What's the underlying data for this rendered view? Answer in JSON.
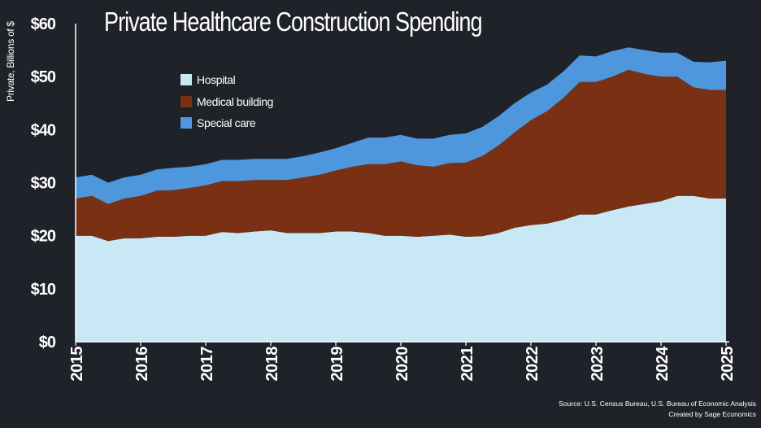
{
  "colors": {
    "background": "#1f2229",
    "hospital": "#c8e8f6",
    "medical_building": "#7a3113",
    "special_care": "#4f97dc",
    "text": "#ffffff"
  },
  "chart_data": {
    "type": "area",
    "stacked": true,
    "title": "Private Healthcare Construction Spending",
    "ylabel": "Private, Billions of $",
    "xlabel": "",
    "ylim": [
      0,
      60
    ],
    "yticks": [
      "$0",
      "$10",
      "$20",
      "$30",
      "$40",
      "$50",
      "$60"
    ],
    "ytick_values": [
      0,
      10,
      20,
      30,
      40,
      50,
      60
    ],
    "xlim": [
      2015,
      2025
    ],
    "xticks": [
      "2015",
      "2016",
      "2017",
      "2018",
      "2019",
      "2020",
      "2021",
      "2022",
      "2023",
      "2024",
      "2025"
    ],
    "xtick_values": [
      2015,
      2016,
      2017,
      2018,
      2019,
      2020,
      2021,
      2022,
      2023,
      2024,
      2025
    ],
    "legend_position": "top-left",
    "x": [
      2015.0,
      2015.25,
      2015.5,
      2015.75,
      2016.0,
      2016.25,
      2016.5,
      2016.75,
      2017.0,
      2017.25,
      2017.5,
      2017.75,
      2018.0,
      2018.25,
      2018.5,
      2018.75,
      2019.0,
      2019.25,
      2019.5,
      2019.75,
      2020.0,
      2020.25,
      2020.5,
      2020.75,
      2021.0,
      2021.25,
      2021.5,
      2021.75,
      2022.0,
      2022.25,
      2022.5,
      2022.75,
      2023.0,
      2023.25,
      2023.5,
      2023.75,
      2024.0,
      2024.25,
      2024.5,
      2024.75,
      2025.0
    ],
    "series": [
      {
        "name": "Hospital",
        "values": [
          20.0,
          20.0,
          19.0,
          19.5,
          19.5,
          19.8,
          19.8,
          20.0,
          20.0,
          20.7,
          20.5,
          20.8,
          21.0,
          20.5,
          20.5,
          20.5,
          20.8,
          20.8,
          20.5,
          20.0,
          20.0,
          19.8,
          20.0,
          20.2,
          19.8,
          19.9,
          20.5,
          21.5,
          22.0,
          22.3,
          23.0,
          24.0,
          24.0,
          24.8,
          25.5,
          26.0,
          26.5,
          27.5,
          27.5,
          27.0,
          27.0
        ]
      },
      {
        "name": "Medical building",
        "values": [
          7.0,
          7.5,
          7.0,
          7.5,
          8.0,
          8.7,
          8.8,
          9.0,
          9.5,
          9.6,
          9.8,
          9.7,
          9.5,
          10.0,
          10.5,
          11.0,
          11.5,
          12.2,
          13.0,
          13.5,
          14.0,
          13.5,
          13.0,
          13.5,
          14.0,
          15.1,
          16.5,
          18.0,
          19.8,
          21.2,
          23.0,
          25.0,
          25.0,
          25.2,
          25.8,
          24.5,
          23.5,
          22.5,
          20.5,
          20.5,
          20.5
        ]
      },
      {
        "name": "Special care",
        "values": [
          4.0,
          4.0,
          4.0,
          4.0,
          4.0,
          4.0,
          4.2,
          4.0,
          4.0,
          4.0,
          4.0,
          4.0,
          4.0,
          4.0,
          4.0,
          4.2,
          4.2,
          4.5,
          5.0,
          5.0,
          5.0,
          5.0,
          5.3,
          5.3,
          5.5,
          5.5,
          5.5,
          5.5,
          5.2,
          5.0,
          5.0,
          5.0,
          4.8,
          4.8,
          4.2,
          4.5,
          4.5,
          4.5,
          4.8,
          5.2,
          5.5
        ]
      }
    ],
    "source_lines": [
      "Source: U.S. Census Bureau, U.S. Bureau of Economic Analysis",
      "Created by Sage Economics"
    ]
  }
}
